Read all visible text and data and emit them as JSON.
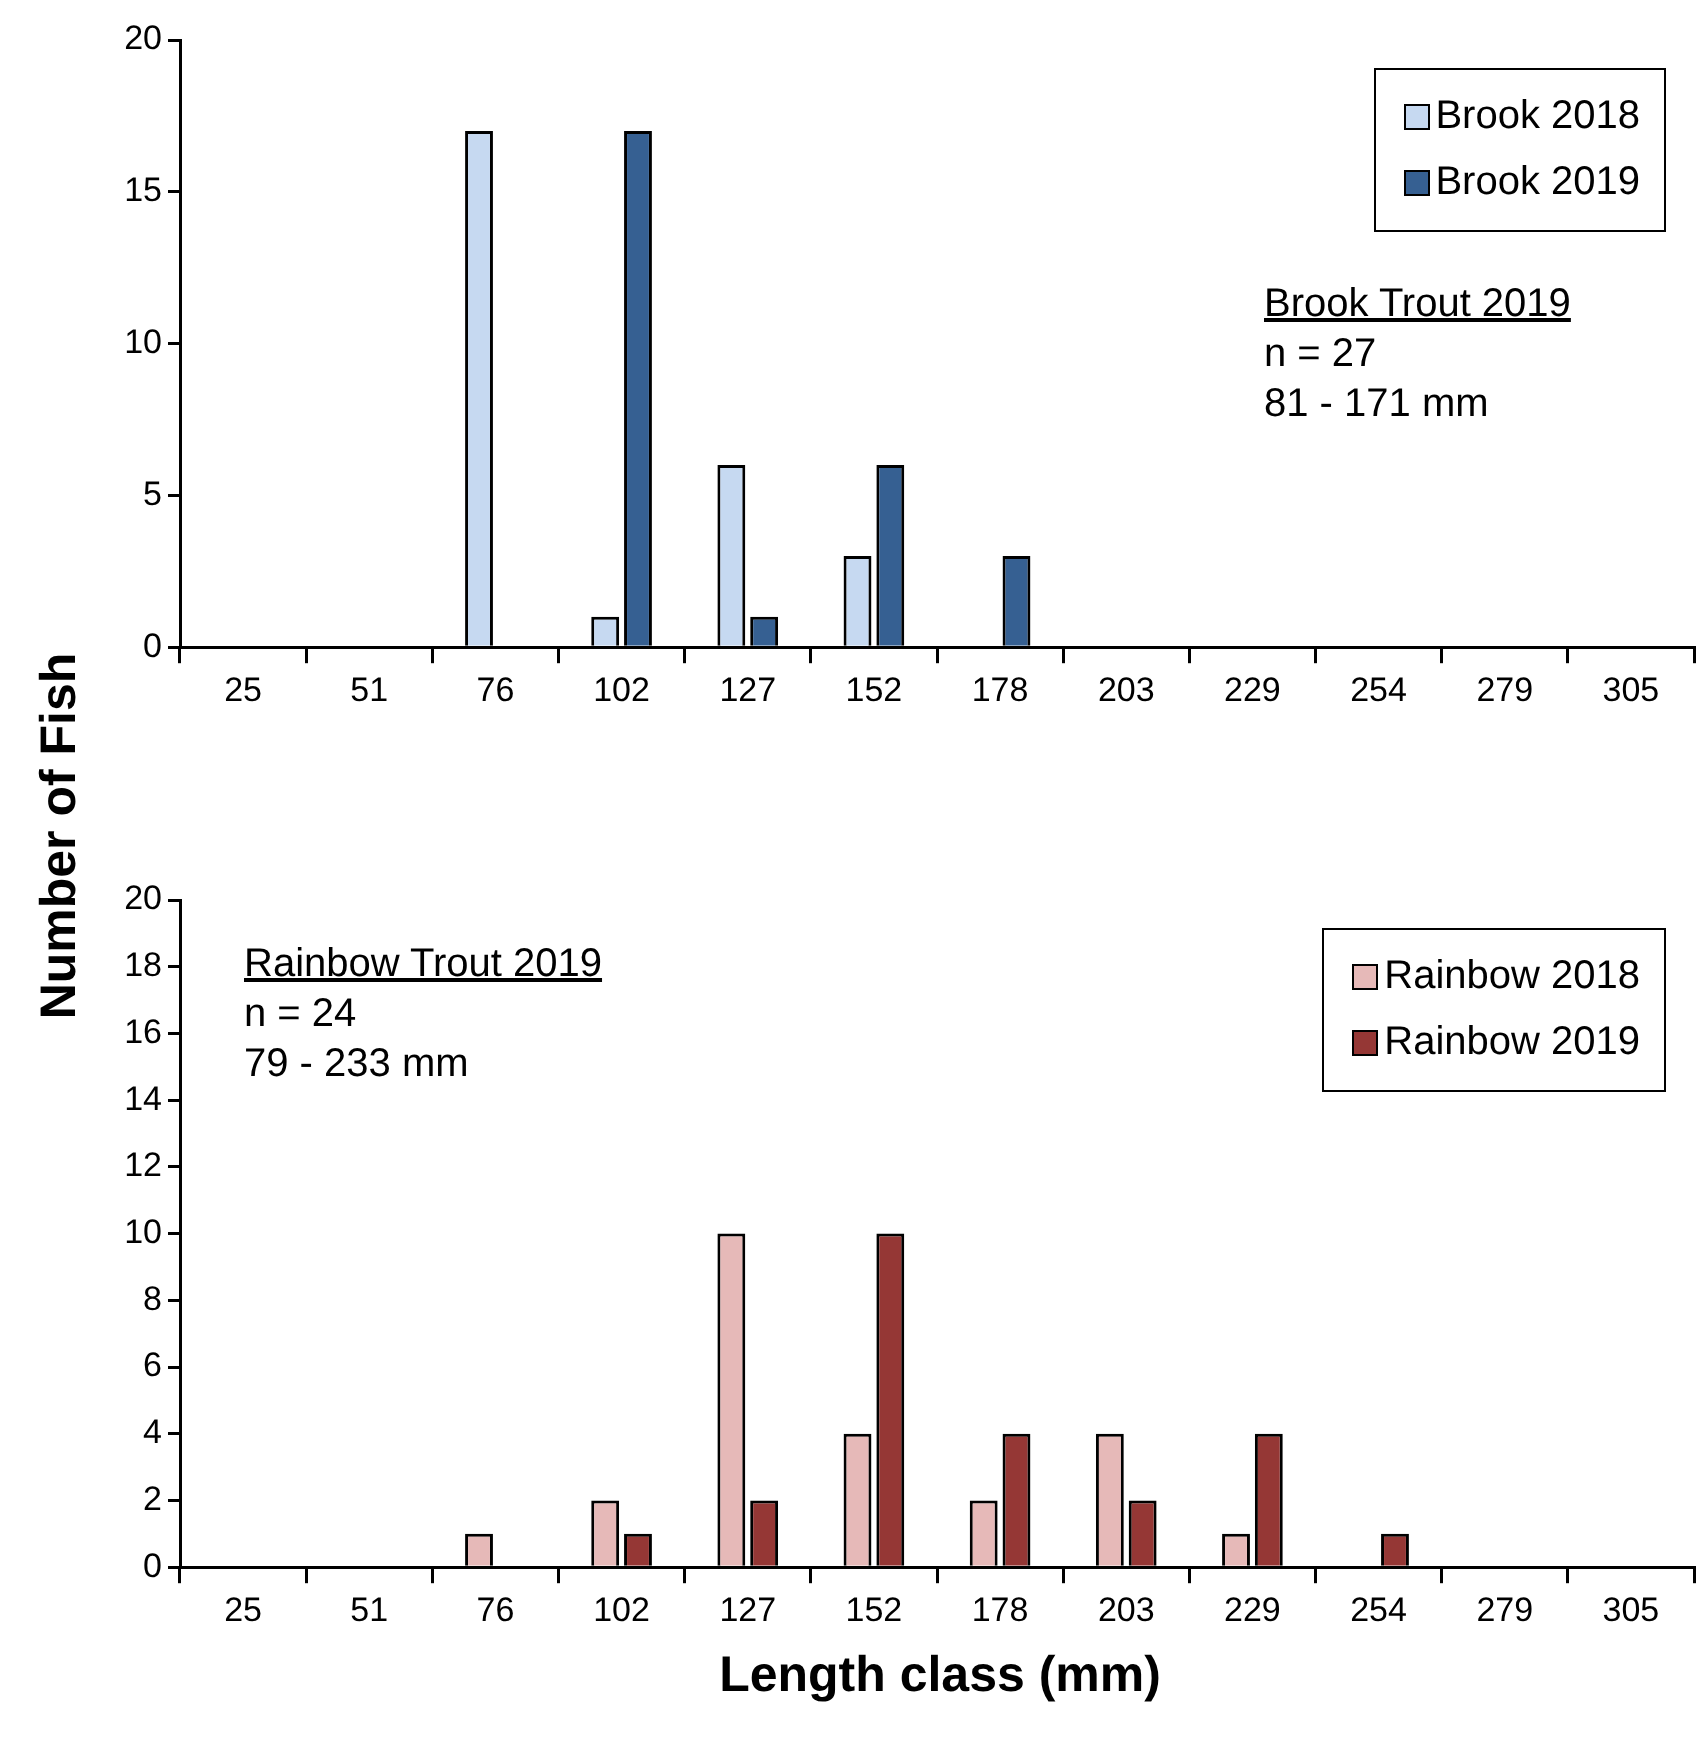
{
  "chart_data": [
    {
      "type": "bar",
      "categories": [
        "25",
        "51",
        "76",
        "102",
        "127",
        "152",
        "178",
        "203",
        "229",
        "254",
        "279",
        "305"
      ],
      "series": [
        {
          "name": "Brook 2018",
          "color": "#c6d9f1",
          "values": [
            0,
            0,
            17,
            1,
            6,
            3,
            0,
            0,
            0,
            0,
            0,
            0
          ]
        },
        {
          "name": "Brook 2019",
          "color": "#366092",
          "values": [
            0,
            0,
            0,
            17,
            1,
            6,
            3,
            0,
            0,
            0,
            0,
            0
          ]
        }
      ],
      "ylim": [
        0,
        20
      ],
      "yticks": [
        0,
        5,
        10,
        15,
        20
      ],
      "ylabel": "Number of Fish",
      "legend": "top right",
      "grid": false,
      "annotations": [
        "Brook Trout 2019",
        "n = 27",
        "81 - 171 mm"
      ]
    },
    {
      "type": "bar",
      "categories": [
        "25",
        "51",
        "76",
        "102",
        "127",
        "152",
        "178",
        "203",
        "229",
        "254",
        "279",
        "305"
      ],
      "series": [
        {
          "name": "Rainbow 2018",
          "color": "#e6b9b8",
          "values": [
            0,
            0,
            1,
            2,
            10,
            4,
            2,
            4,
            1,
            0,
            0,
            0
          ]
        },
        {
          "name": "Rainbow 2019",
          "color": "#953735",
          "values": [
            0,
            0,
            0,
            1,
            2,
            10,
            4,
            2,
            4,
            1,
            0,
            0
          ]
        }
      ],
      "ylim": [
        0,
        20
      ],
      "yticks": [
        0,
        2,
        4,
        6,
        8,
        10,
        12,
        14,
        16,
        18,
        20
      ],
      "xlabel": "Length class (mm)",
      "legend": "top right",
      "grid": false,
      "annotations": [
        "Rainbow Trout 2019",
        "n = 24",
        "79 - 233 mm"
      ]
    }
  ]
}
